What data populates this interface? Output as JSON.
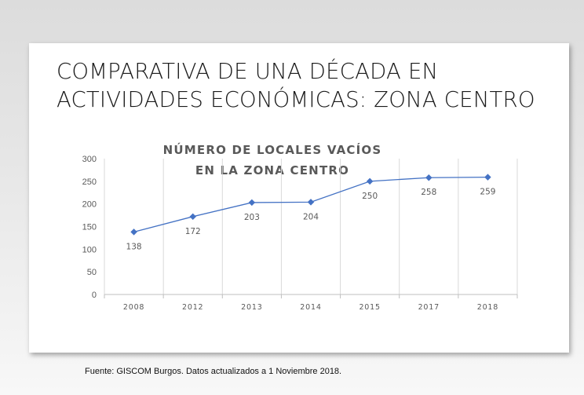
{
  "slide": {
    "title_line1": "COMPARATIVA DE UNA DÉCADA EN",
    "title_line2": "ACTIVIDADES ECONÓMICAS: ZONA CENTRO"
  },
  "footer": {
    "source": "Fuente: GISCOM Burgos. Datos actualizados a 1 Noviembre 2018."
  },
  "chart_data": {
    "type": "line",
    "title_line1": "NÚMERO DE LOCALES VACÍOS",
    "title_line2": "EN LA ZONA CENTRO",
    "categories": [
      "2008",
      "2012",
      "2013",
      "2014",
      "2015",
      "2017",
      "2018"
    ],
    "series": [
      {
        "values": [
          138,
          172,
          203,
          204,
          250,
          258,
          259
        ],
        "color": "#4472c4"
      }
    ],
    "ylim": [
      0,
      300
    ],
    "yticks": [
      0,
      50,
      100,
      150,
      200,
      250,
      300
    ],
    "grid": "vertical",
    "data_labels": true,
    "legend": "none"
  }
}
